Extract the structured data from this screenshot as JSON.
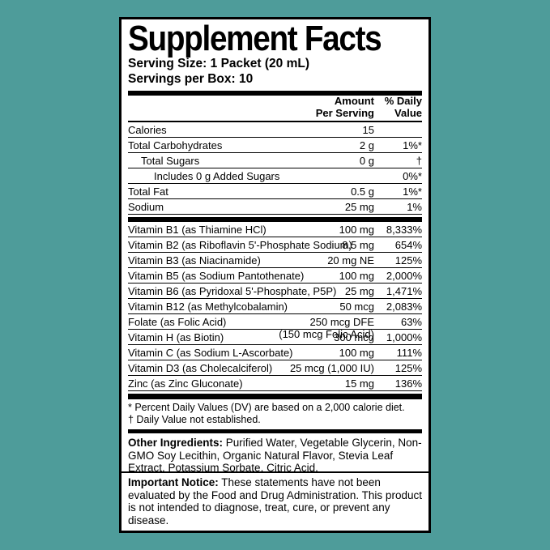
{
  "colors": {
    "background": "#4e9c9a",
    "label_background": "#ffffff",
    "text": "#000000",
    "rule": "#000000"
  },
  "label": {
    "title": "Supplement Facts",
    "serving_size": "Serving Size: 1 Packet (20 mL)",
    "servings_per_box": "Servings per Box: 10",
    "columns": {
      "amount_header": "Amount\nPer Serving",
      "dv_header": "% Daily\nValue"
    },
    "main_rows": [
      {
        "name": "Calories",
        "amount": "15",
        "dv": "",
        "indent": 0
      },
      {
        "name": "Total Carbohydrates",
        "amount": "2 g",
        "dv": "1%*",
        "indent": 0
      },
      {
        "name": "Total Sugars",
        "amount": "0 g",
        "dv": "†",
        "indent": 1
      },
      {
        "name": "Includes 0 g Added Sugars",
        "amount": "",
        "dv": "0%*",
        "indent": 2
      },
      {
        "name": "Total Fat",
        "amount": "0.5 g",
        "dv": "1%*",
        "indent": 0
      },
      {
        "name": "Sodium",
        "amount": "25 mg",
        "dv": "1%",
        "indent": 0
      }
    ],
    "vitamin_rows": [
      {
        "name": "Vitamin B1 (as Thiamine HCl)",
        "amount": "100 mg",
        "dv": "8,333%",
        "indent": 0
      },
      {
        "name": "Vitamin B2 (as Riboflavin 5'-Phosphate Sodium)",
        "amount": "8.5 mg",
        "dv": "654%",
        "indent": 0
      },
      {
        "name": "Vitamin B3 (as Niacinamide)",
        "amount": "20 mg NE",
        "dv": "125%",
        "indent": 0
      },
      {
        "name": "Vitamin B5 (as Sodium Pantothenate)",
        "amount": "100 mg",
        "dv": "2,000%",
        "indent": 0
      },
      {
        "name": "Vitamin B6 (as Pyridoxal 5'-Phosphate, P5P)",
        "amount": "25 mg",
        "dv": "1,471%",
        "indent": 0
      },
      {
        "name": "Vitamin B12 (as Methylcobalamin)",
        "amount": "50 mcg",
        "dv": "2,083%",
        "indent": 0
      },
      {
        "name": "Folate (as Folic Acid)",
        "amount": "250 mcg DFE",
        "amount2": "(150 mcg Folic Acid)",
        "dv": "63%",
        "indent": 0
      },
      {
        "name": "Vitamin H (as Biotin)",
        "amount": "300 mcg",
        "dv": "1,000%",
        "indent": 0
      },
      {
        "name": "Vitamin C (as Sodium L-Ascorbate)",
        "amount": "100 mg",
        "dv": "111%",
        "indent": 0
      },
      {
        "name": "Vitamin D3 (as Cholecalciferol)",
        "amount": "25 mcg (1,000 IU)",
        "dv": "125%",
        "indent": 0
      },
      {
        "name": "Zinc (as Zinc Gluconate)",
        "amount": "15 mg",
        "dv": "136%",
        "indent": 0
      }
    ],
    "footnotes": [
      "* Percent Daily Values (DV) are based on a 2,000 calorie diet.",
      "† Daily Value not established."
    ],
    "other_ingredients": {
      "label": "Other Ingredients:",
      "text": " Purified Water, Vegetable Glycerin, Non-GMO Soy Lecithin, Organic Natural Flavor, Stevia Leaf Extract, Potassium Sorbate, Citric Acid."
    },
    "important_notice": {
      "label": "Important Notice:",
      "text": " These statements have not been evaluated by the Food and Drug Administration. This product is not intended to diagnose, treat, cure, or prevent any disease."
    }
  }
}
